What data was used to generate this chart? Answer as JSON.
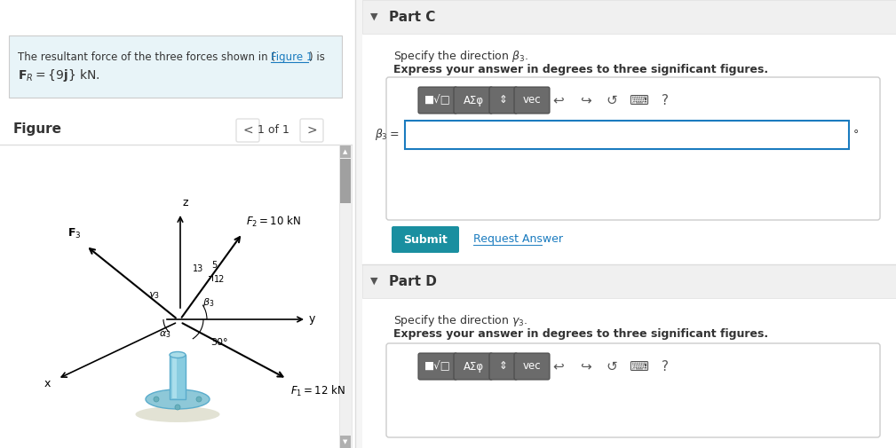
{
  "bg_color": "#f5f5f5",
  "white": "#ffffff",
  "teal_bg": "#e8f4f8",
  "light_gray": "#f0f0f0",
  "mid_gray": "#e0e0e0",
  "dark_gray": "#555555",
  "text_color": "#333333",
  "blue_link": "#1a7bbf",
  "teal_btn": "#1a8fa0",
  "border_color": "#cccccc",
  "input_border": "#1a7bbf",
  "divider": "#dddddd",
  "part_c_label": "Part C",
  "part_c_desc1": "Specify the direction $\\beta_3$.",
  "part_c_desc2": "Express your answer in degrees to three significant figures.",
  "beta_label": "$\\beta_3 =$",
  "degree_symbol": "°",
  "submit_text": "Submit",
  "request_text": "Request Answer",
  "part_d_label": "Part D",
  "part_d_desc1": "Specify the direction $\\gamma_3$.",
  "part_d_desc2": "Express your answer in degrees to three significant figures."
}
